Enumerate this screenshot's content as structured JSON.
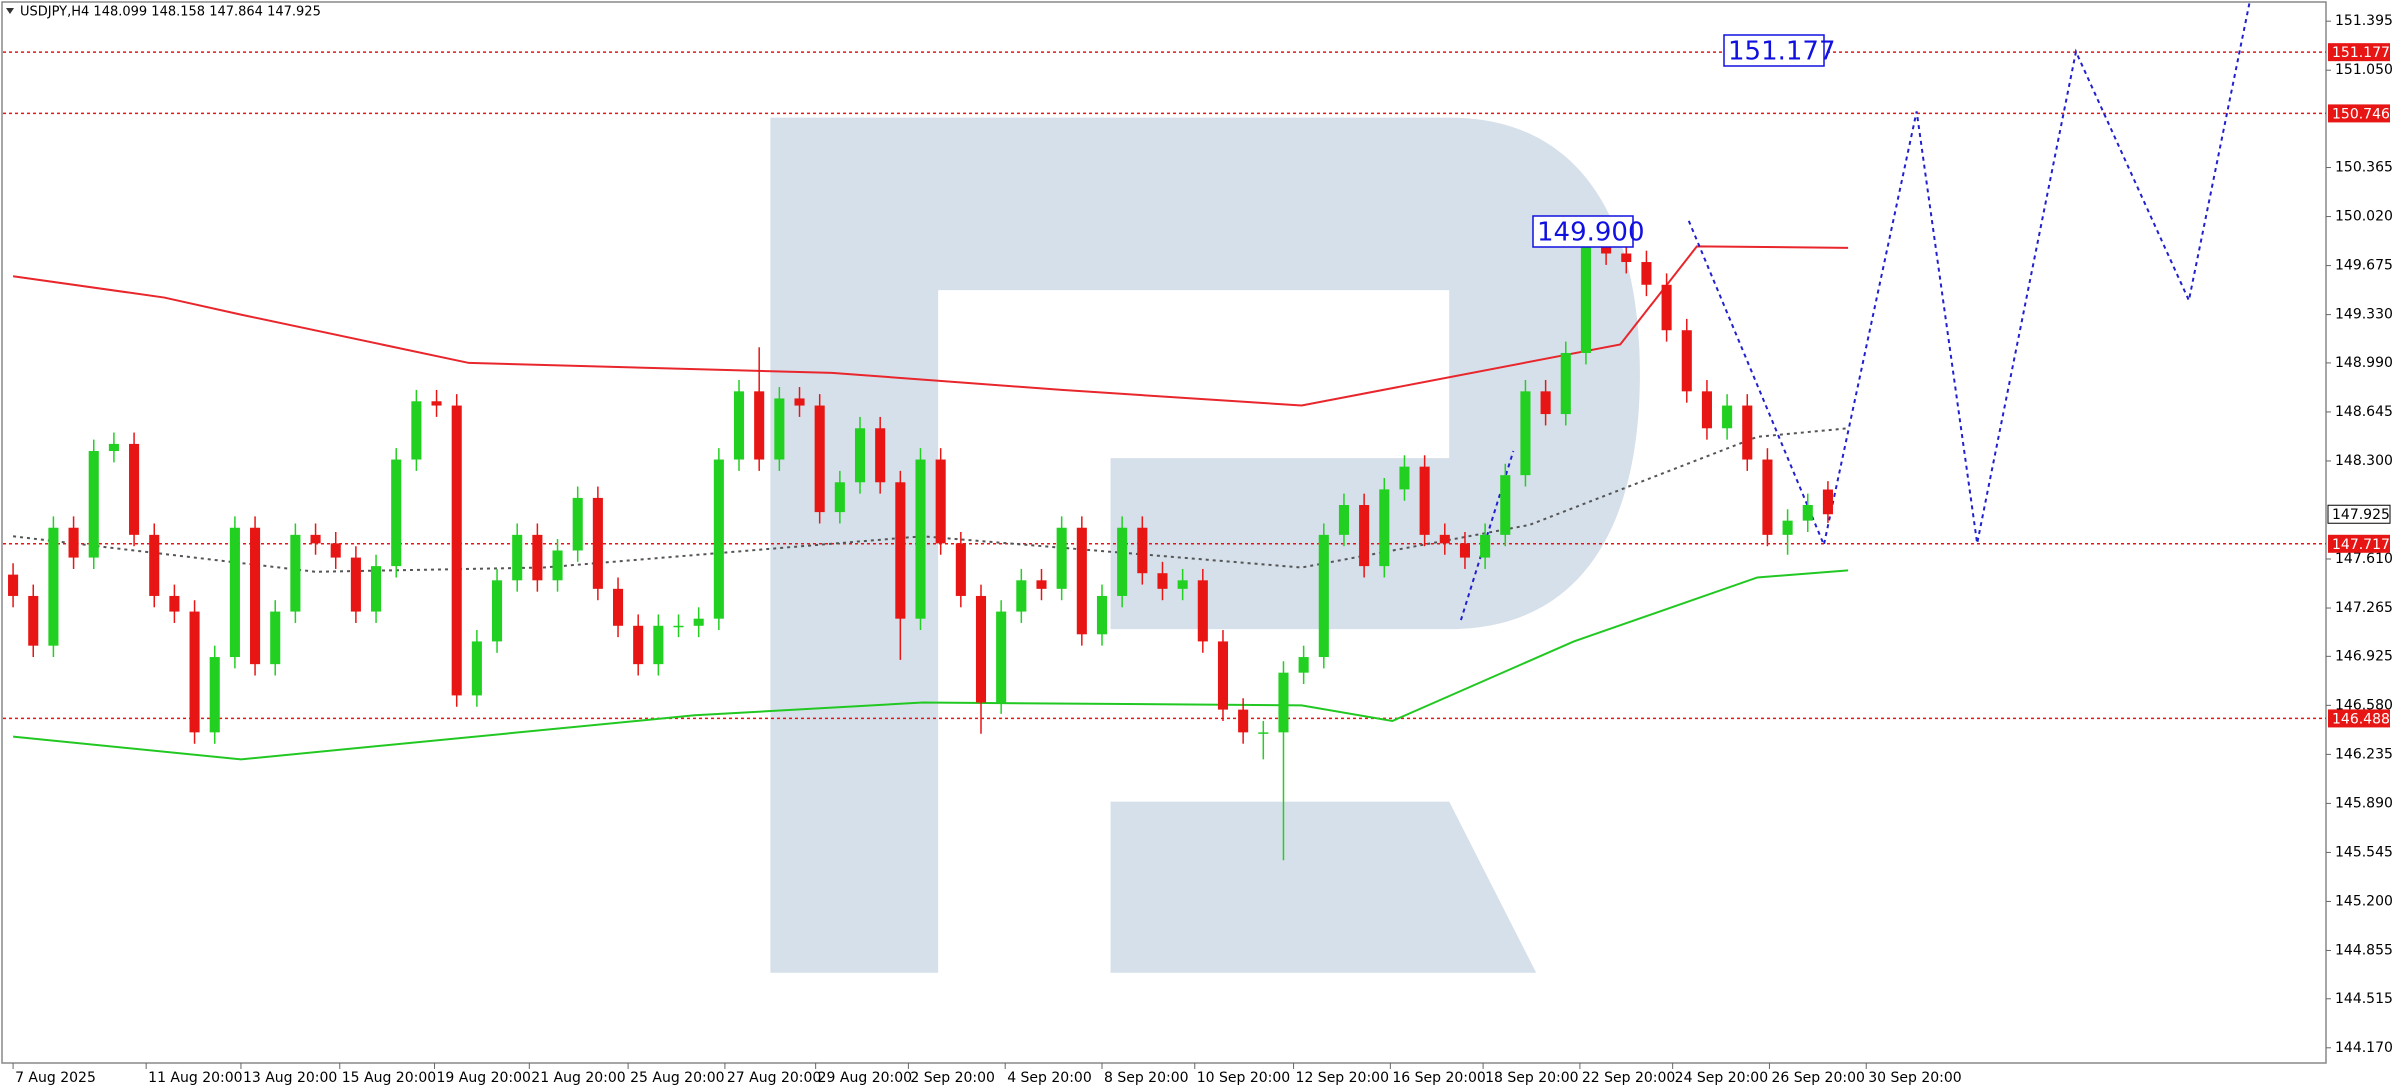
{
  "chart_data": {
    "type": "candlestick",
    "symbol_info": "USDJPY,H4  148.099 148.158 147.864 147.925",
    "open": [
      147.5,
      147.35,
      147.0,
      147.83,
      147.62,
      148.37,
      148.42,
      147.78,
      147.35,
      147.24,
      146.39,
      146.92,
      147.83,
      146.87,
      147.24,
      147.78,
      147.72,
      147.62,
      147.24,
      147.56,
      148.31,
      148.72,
      148.69,
      146.65,
      147.03,
      147.46,
      147.78,
      147.46,
      147.67,
      148.04,
      147.4,
      147.14,
      146.87,
      147.14,
      147.14,
      147.19,
      148.31,
      148.79,
      148.31,
      148.74,
      148.69,
      147.94,
      148.15,
      148.53,
      148.15,
      147.19,
      148.31,
      147.72,
      147.35,
      146.6,
      147.24,
      147.46,
      147.4,
      147.83,
      147.08,
      147.35,
      147.83,
      147.51,
      147.4,
      147.46,
      147.03,
      146.55,
      146.39,
      146.39,
      146.81,
      146.92,
      147.78,
      147.99,
      147.56,
      148.1,
      148.26,
      147.78,
      147.72,
      147.62,
      147.78,
      148.2,
      148.79,
      148.63,
      149.06,
      149.81,
      149.76,
      149.7,
      149.54,
      149.22,
      148.79,
      148.53,
      148.69,
      148.31,
      147.78,
      147.88,
      148.099
    ],
    "high": [
      147.58,
      147.43,
      147.91,
      147.91,
      148.45,
      148.5,
      148.5,
      147.86,
      147.43,
      147.32,
      147.0,
      147.91,
      147.91,
      147.32,
      147.86,
      147.86,
      147.8,
      147.7,
      147.64,
      148.39,
      148.8,
      148.8,
      148.77,
      147.11,
      147.54,
      147.86,
      147.86,
      147.75,
      148.12,
      148.12,
      147.48,
      147.22,
      147.22,
      147.22,
      147.27,
      148.39,
      148.87,
      149.1,
      148.82,
      148.82,
      148.77,
      148.23,
      148.61,
      148.61,
      148.23,
      148.39,
      148.39,
      147.8,
      147.43,
      147.32,
      147.54,
      147.54,
      147.91,
      147.91,
      147.43,
      147.91,
      147.91,
      147.59,
      147.54,
      147.54,
      147.11,
      146.63,
      146.47,
      146.89,
      147.0,
      147.86,
      148.07,
      148.07,
      148.18,
      148.34,
      148.34,
      147.86,
      147.8,
      147.86,
      148.28,
      148.87,
      148.87,
      149.14,
      150.02,
      149.89,
      149.84,
      149.78,
      149.62,
      149.3,
      148.87,
      148.77,
      148.77,
      148.39,
      147.96,
      148.07,
      148.158
    ],
    "low": [
      147.27,
      146.92,
      146.92,
      147.54,
      147.54,
      148.29,
      147.7,
      147.27,
      147.16,
      146.31,
      146.31,
      146.84,
      146.79,
      146.79,
      147.16,
      147.64,
      147.54,
      147.16,
      147.16,
      147.48,
      148.23,
      148.61,
      146.57,
      146.57,
      146.95,
      147.38,
      147.38,
      147.38,
      147.59,
      147.32,
      147.06,
      146.79,
      146.79,
      147.06,
      147.06,
      147.11,
      148.23,
      148.23,
      148.23,
      148.61,
      147.86,
      147.86,
      148.07,
      148.07,
      146.9,
      147.11,
      147.64,
      147.27,
      146.38,
      146.52,
      147.16,
      147.32,
      147.32,
      147.0,
      147.0,
      147.27,
      147.43,
      147.32,
      147.32,
      146.95,
      146.47,
      146.31,
      146.2,
      145.49,
      146.73,
      146.84,
      147.7,
      147.48,
      147.48,
      148.02,
      147.7,
      147.64,
      147.54,
      147.54,
      147.7,
      148.12,
      148.55,
      148.55,
      148.98,
      149.68,
      149.62,
      149.46,
      149.14,
      148.71,
      148.45,
      148.45,
      148.23,
      147.7,
      147.64,
      147.8,
      147.864
    ],
    "close": [
      147.35,
      147.0,
      147.83,
      147.62,
      148.37,
      148.42,
      147.78,
      147.35,
      147.24,
      146.39,
      146.92,
      147.83,
      146.87,
      147.24,
      147.78,
      147.72,
      147.62,
      147.24,
      147.56,
      148.31,
      148.72,
      148.69,
      146.65,
      147.03,
      147.46,
      147.78,
      147.46,
      147.67,
      148.04,
      147.4,
      147.14,
      146.87,
      147.14,
      147.14,
      147.19,
      148.31,
      148.79,
      148.31,
      148.74,
      148.69,
      147.94,
      148.15,
      148.53,
      148.15,
      147.19,
      148.31,
      147.72,
      147.35,
      146.6,
      147.24,
      147.46,
      147.4,
      147.83,
      147.08,
      147.35,
      147.83,
      147.51,
      147.4,
      147.46,
      147.03,
      146.55,
      146.39,
      146.39,
      146.81,
      146.92,
      147.78,
      147.99,
      147.56,
      148.1,
      148.26,
      147.78,
      147.72,
      147.62,
      147.78,
      148.2,
      148.79,
      148.63,
      149.06,
      149.81,
      149.76,
      149.7,
      149.54,
      149.22,
      148.79,
      148.53,
      148.69,
      148.31,
      147.78,
      147.88,
      147.99,
      147.925
    ],
    "up_color": "#22d022",
    "down_color": "#e81515",
    "series": [
      {
        "color": "#e8262b",
        "style": "solid",
        "x": [
          0,
          7.5,
          11.3,
          22.6,
          40.6,
          52,
          63.9,
          79.7,
          83.5,
          91
        ],
        "values": [
          149.6,
          149.45,
          149.33,
          148.99,
          148.92,
          148.8,
          148.69,
          149.12,
          149.81,
          149.8
        ]
      },
      {
        "color": "#22c822",
        "style": "solid",
        "x": [
          0,
          11.3,
          33.8,
          45.1,
          63.9,
          68.4,
          77.4,
          86.5,
          91
        ],
        "values": [
          146.36,
          146.2,
          146.51,
          146.6,
          146.58,
          146.47,
          147.03,
          147.48,
          147.53
        ]
      },
      {
        "color": "#555555",
        "style": "dotted",
        "x": [
          0,
          15,
          26.3,
          45.1,
          63.9,
          75.2,
          86.5,
          91
        ],
        "values": [
          147.77,
          147.52,
          147.55,
          147.77,
          147.55,
          147.85,
          148.47,
          148.53
        ]
      },
      {
        "color": "#2020d0",
        "style": "dashed",
        "x": [
          71.8,
          74.4
        ],
        "values": [
          147.18,
          148.37
        ]
      },
      {
        "color": "#2020d0",
        "style": "dashed",
        "x": [
          83.1,
          89.8,
          94.4,
          97.4,
          102.3,
          107.9,
          110.9
        ],
        "values": [
          149.99,
          147.71,
          150.76,
          147.72,
          151.18,
          149.43,
          151.52
        ]
      }
    ],
    "levels": [
      151.177,
      150.746,
      147.717,
      146.488
    ],
    "level_color": "#e81515",
    "annotations": [
      "149.900",
      "151.177"
    ],
    "xlim": [
      -0.5,
      114.7
    ],
    "ylim": [
      144.063,
      151.523
    ],
    "xticks": [
      {
        "value": 0,
        "label": "7 Aug 2025"
      },
      {
        "value": 6.6,
        "label": "11 Aug 20:00"
      },
      {
        "value": 11.3,
        "label": "13 Aug 20:00"
      },
      {
        "value": 16.2,
        "label": "15 Aug 20:00"
      },
      {
        "value": 20.9,
        "label": "19 Aug 20:00"
      },
      {
        "value": 25.6,
        "label": "21 Aug 20:00"
      },
      {
        "value": 30.5,
        "label": "25 Aug 20:00"
      },
      {
        "value": 35.3,
        "label": "27 Aug 20:00"
      },
      {
        "value": 39.8,
        "label": "29 Aug 20:00"
      },
      {
        "value": 44.4,
        "label": "2 Sep 20:00"
      },
      {
        "value": 49.2,
        "label": "4 Sep 20:00"
      },
      {
        "value": 54,
        "label": "8 Sep 20:00"
      },
      {
        "value": 58.6,
        "label": "10 Sep 20:00"
      },
      {
        "value": 63.5,
        "label": "12 Sep 20:00"
      },
      {
        "value": 68.3,
        "label": "16 Sep 20:00"
      },
      {
        "value": 72.9,
        "label": "18 Sep 20:00"
      },
      {
        "value": 77.7,
        "label": "22 Sep 20:00"
      },
      {
        "value": 82.3,
        "label": "24 Sep 20:00"
      },
      {
        "value": 87.1,
        "label": "26 Sep 20:00"
      },
      {
        "value": 91.9,
        "label": "30 Sep 20:00"
      }
    ],
    "yticks": [
      151.395,
      {
        "value": 151.05,
        "label": "151.050"
      },
      150.365,
      {
        "value": 150.02,
        "label": "150.020"
      },
      149.675,
      {
        "value": 149.33,
        "label": "149.330"
      },
      {
        "value": 148.99,
        "label": "148.990"
      },
      148.645,
      {
        "value": 148.3,
        "label": "148.300"
      },
      {
        "value": 147.61,
        "label": "147.610"
      },
      147.265,
      146.925,
      {
        "value": 146.58,
        "label": "146.580"
      },
      146.235,
      {
        "value": 145.89,
        "label": "145.890"
      },
      145.545,
      {
        "value": 145.2,
        "label": "145.200"
      },
      144.855,
      144.515,
      {
        "value": 144.17,
        "label": "144.170"
      }
    ]
  }
}
